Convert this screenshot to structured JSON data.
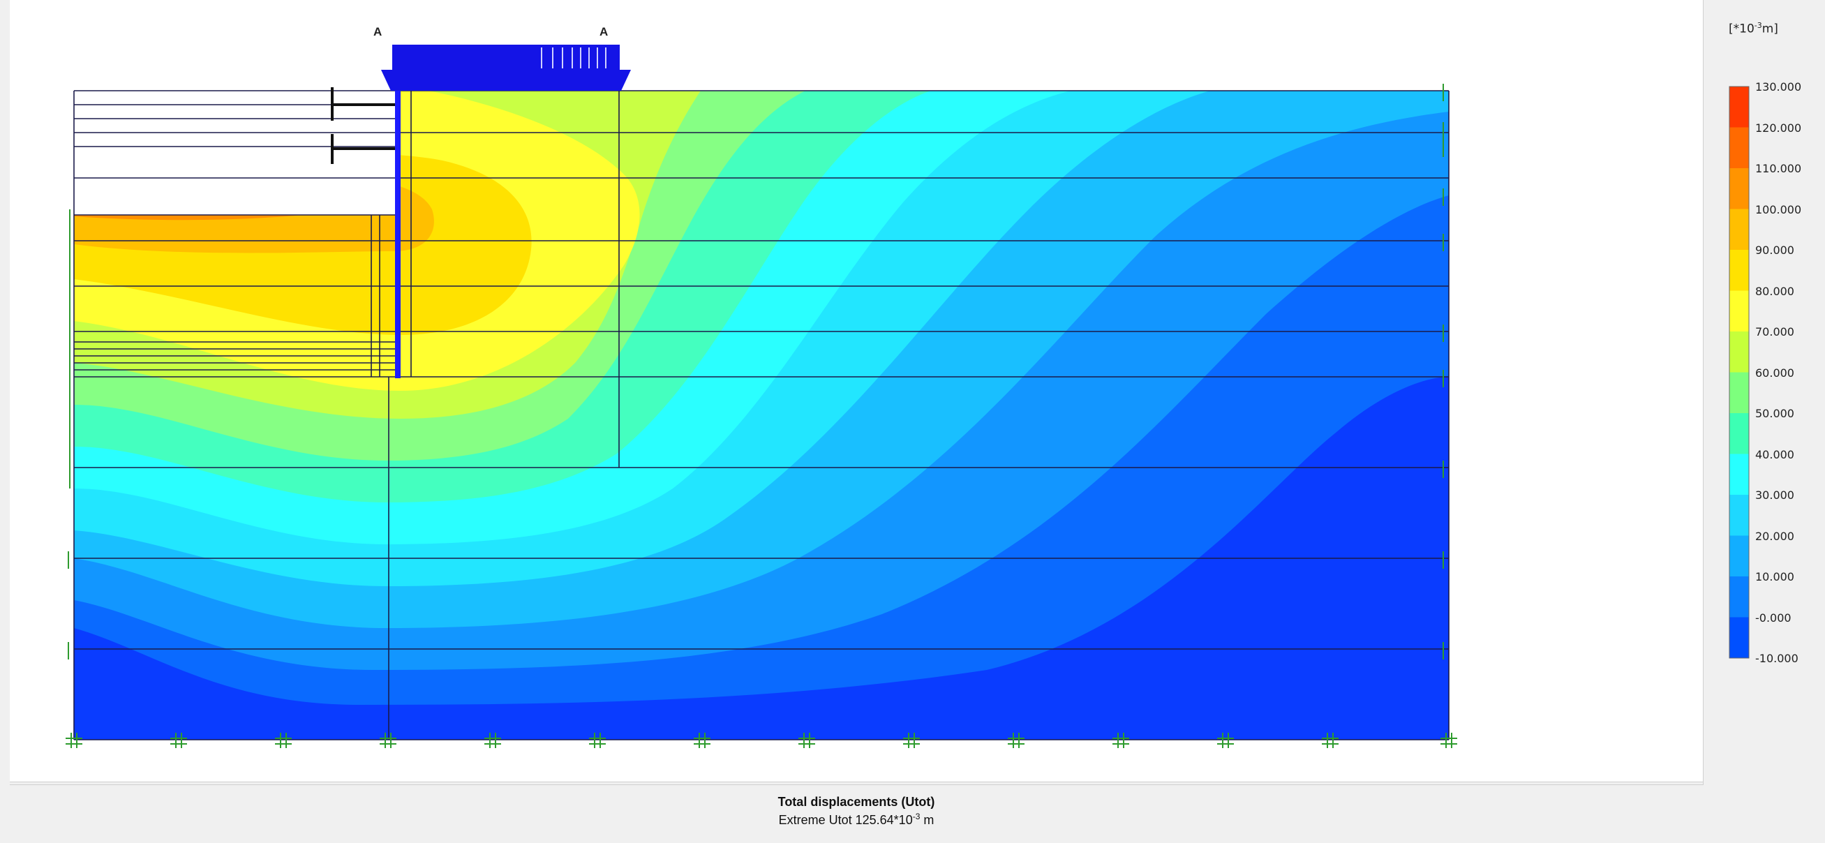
{
  "plot": {
    "title": "Total displacements (Utot)",
    "extreme_prefix": "Extreme Utot 125.64*10",
    "extreme_exponent": "-3",
    "extreme_unit": " m",
    "section_label_left": "A",
    "section_label_right": "A"
  },
  "legend": {
    "unit_prefix": "[*10",
    "unit_exponent": "-3",
    "unit_suffix": "m]",
    "ticks": [
      "130.000",
      "120.000",
      "110.000",
      "100.000",
      "90.000",
      "80.000",
      "70.000",
      "60.000",
      "50.000",
      "40.000",
      "30.000",
      "20.000",
      "10.000",
      "-0.000",
      "-10.000"
    ],
    "colors": [
      "#ff3a00",
      "#ff6a00",
      "#ff9400",
      "#ffbf00",
      "#ffe200",
      "#ffff2a",
      "#c6ff3a",
      "#7dff7d",
      "#3cffb4",
      "#27ffff",
      "#1ed8ff",
      "#12aeff",
      "#0a80ff",
      "#0050ff",
      "#0024f5"
    ]
  }
}
